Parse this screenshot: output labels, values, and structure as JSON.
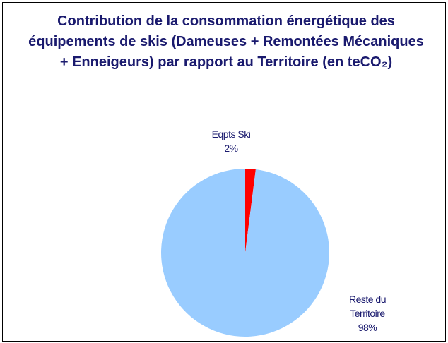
{
  "chart_data": {
    "type": "pie",
    "title": "Contribution de la consommation énergétique des équipements de skis (Dameuses + Remontées Mécaniques + Enneigeurs) par rapport au Territoire (en teCO₂)",
    "categories": [
      "Eqpts Ski",
      "Reste du Territoire"
    ],
    "values": [
      2,
      98
    ],
    "value_labels": [
      "2%",
      "98%"
    ],
    "colors": [
      "#ff0000",
      "#99ccff"
    ]
  }
}
